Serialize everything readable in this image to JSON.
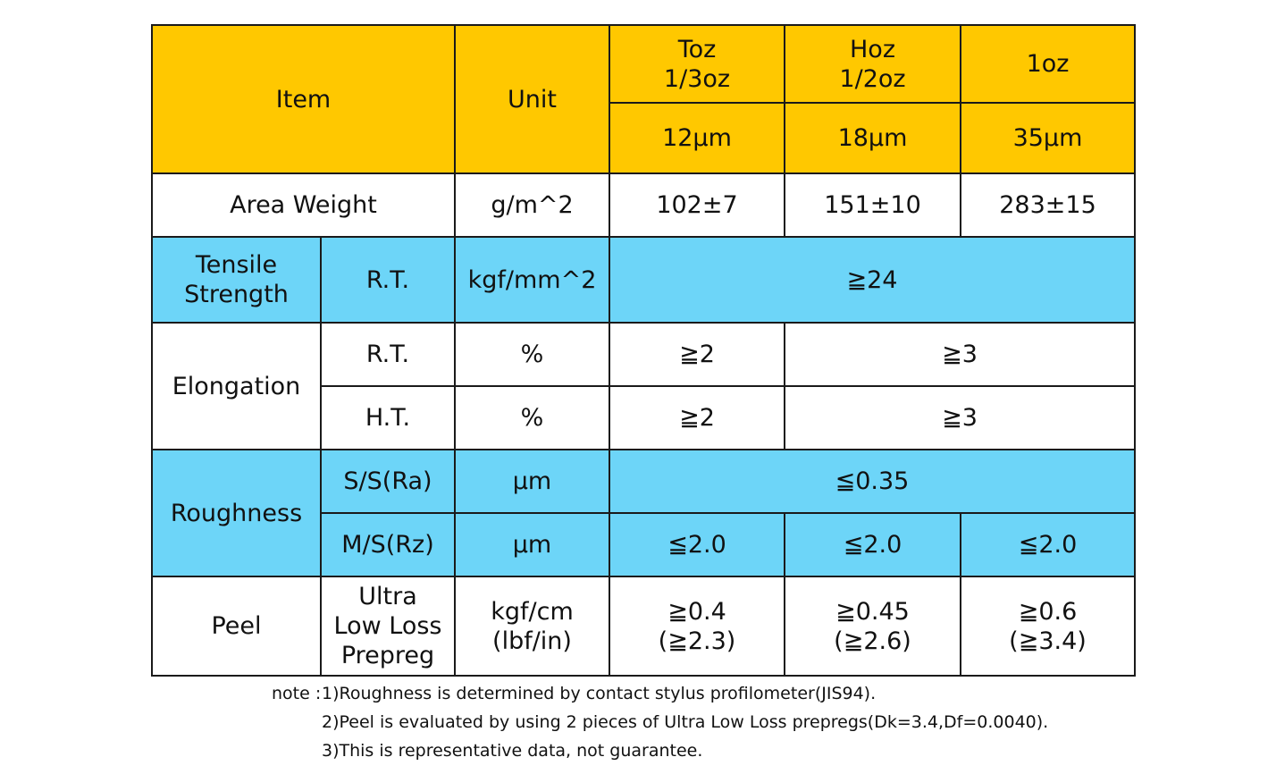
{
  "header": {
    "item": "Item",
    "unit": "Unit",
    "col1_name": "Toz\n1/3oz",
    "col2_name": "Hoz\n1/2oz",
    "col3_name": "1oz",
    "col1_thickness": "12μm",
    "col2_thickness": "18μm",
    "col3_thickness": "35μm"
  },
  "area_weight": {
    "label": "Area Weight",
    "unit": "g/m^2",
    "v1": "102±7",
    "v2": "151±10",
    "v3": "283±15"
  },
  "tensile": {
    "label": "Tensile\nStrength",
    "cond": "R.T.",
    "unit": "kgf/mm^2",
    "value": "≧24"
  },
  "elongation": {
    "label": "Elongation",
    "rt_cond": "R.T.",
    "rt_unit": "%",
    "rt_v1": "≧2",
    "rt_v23": "≧3",
    "ht_cond": "H.T.",
    "ht_unit": "%",
    "ht_v1": "≧2",
    "ht_v23": "≧3"
  },
  "roughness": {
    "label": "Roughness",
    "ss_cond": "S/S(Ra)",
    "ss_unit": "μm",
    "ss_value": "≦0.35",
    "ms_cond": "M/S(Rz)",
    "ms_unit": "μm",
    "ms_v1": "≦2.0",
    "ms_v2": "≦2.0",
    "ms_v3": "≦2.0"
  },
  "peel": {
    "label": "Peel",
    "cond": "Ultra\nLow Loss\nPrepreg",
    "unit": "kgf/cm\n(lbf/in)",
    "v1": "≧0.4\n(≧2.3)",
    "v2": "≧0.45\n(≧2.6)",
    "v3": "≧0.6\n(≧3.4)"
  },
  "notes": {
    "label": "note :",
    "n1": "1)Roughness is determined by contact stylus profilometer(JIS94).",
    "n2": "2)Peel is evaluated by using 2 pieces of Ultra Low Loss prepregs(Dk=3.4,Df=0.0040).",
    "n3": "3)This is representative data, not guarantee."
  }
}
